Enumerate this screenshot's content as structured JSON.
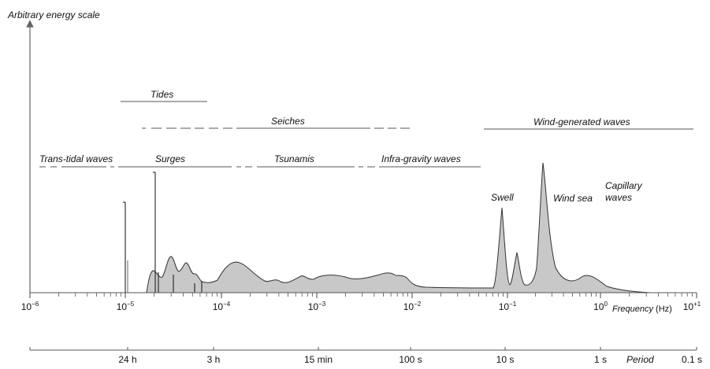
{
  "y_axis_label": "Arbitrary energy scale",
  "frequency_axis": {
    "label": "Frequency",
    "unit": "(Hz)",
    "ticks": [
      {
        "base": "10",
        "exp": "−6",
        "log": -6
      },
      {
        "base": "10",
        "exp": "−5",
        "log": -5
      },
      {
        "base": "10",
        "exp": "−4",
        "log": -4
      },
      {
        "base": "10",
        "exp": "−3",
        "log": -3
      },
      {
        "base": "10",
        "exp": "−2",
        "log": -2
      },
      {
        "base": "10",
        "exp": "−1",
        "log": -1
      },
      {
        "base": "10",
        "exp": "0",
        "log": 0
      },
      {
        "base": "10",
        "exp": "+1",
        "log": 1
      }
    ]
  },
  "period_axis": {
    "label": "Period",
    "ticks": [
      "24 h",
      "3 h",
      "15 min",
      "100 s",
      "10 s",
      "1 s",
      "0.1 s"
    ]
  },
  "bands": {
    "tides": "Tides",
    "seiches": "Seiches",
    "wind_generated": "Wind-generated waves",
    "trans_tidal": "Trans-tidal waves",
    "surges": "Surges",
    "tsunamis": "Tsunamis",
    "infra_gravity": "Infra-gravity waves"
  },
  "peaks": {
    "swell": "Swell",
    "wind_sea": "Wind sea",
    "capillary_1": "Capillary",
    "capillary_2": "waves"
  },
  "colors": {
    "spectrum_fill": "#c8c8c8",
    "line": "#555555",
    "text": "#111111"
  }
}
